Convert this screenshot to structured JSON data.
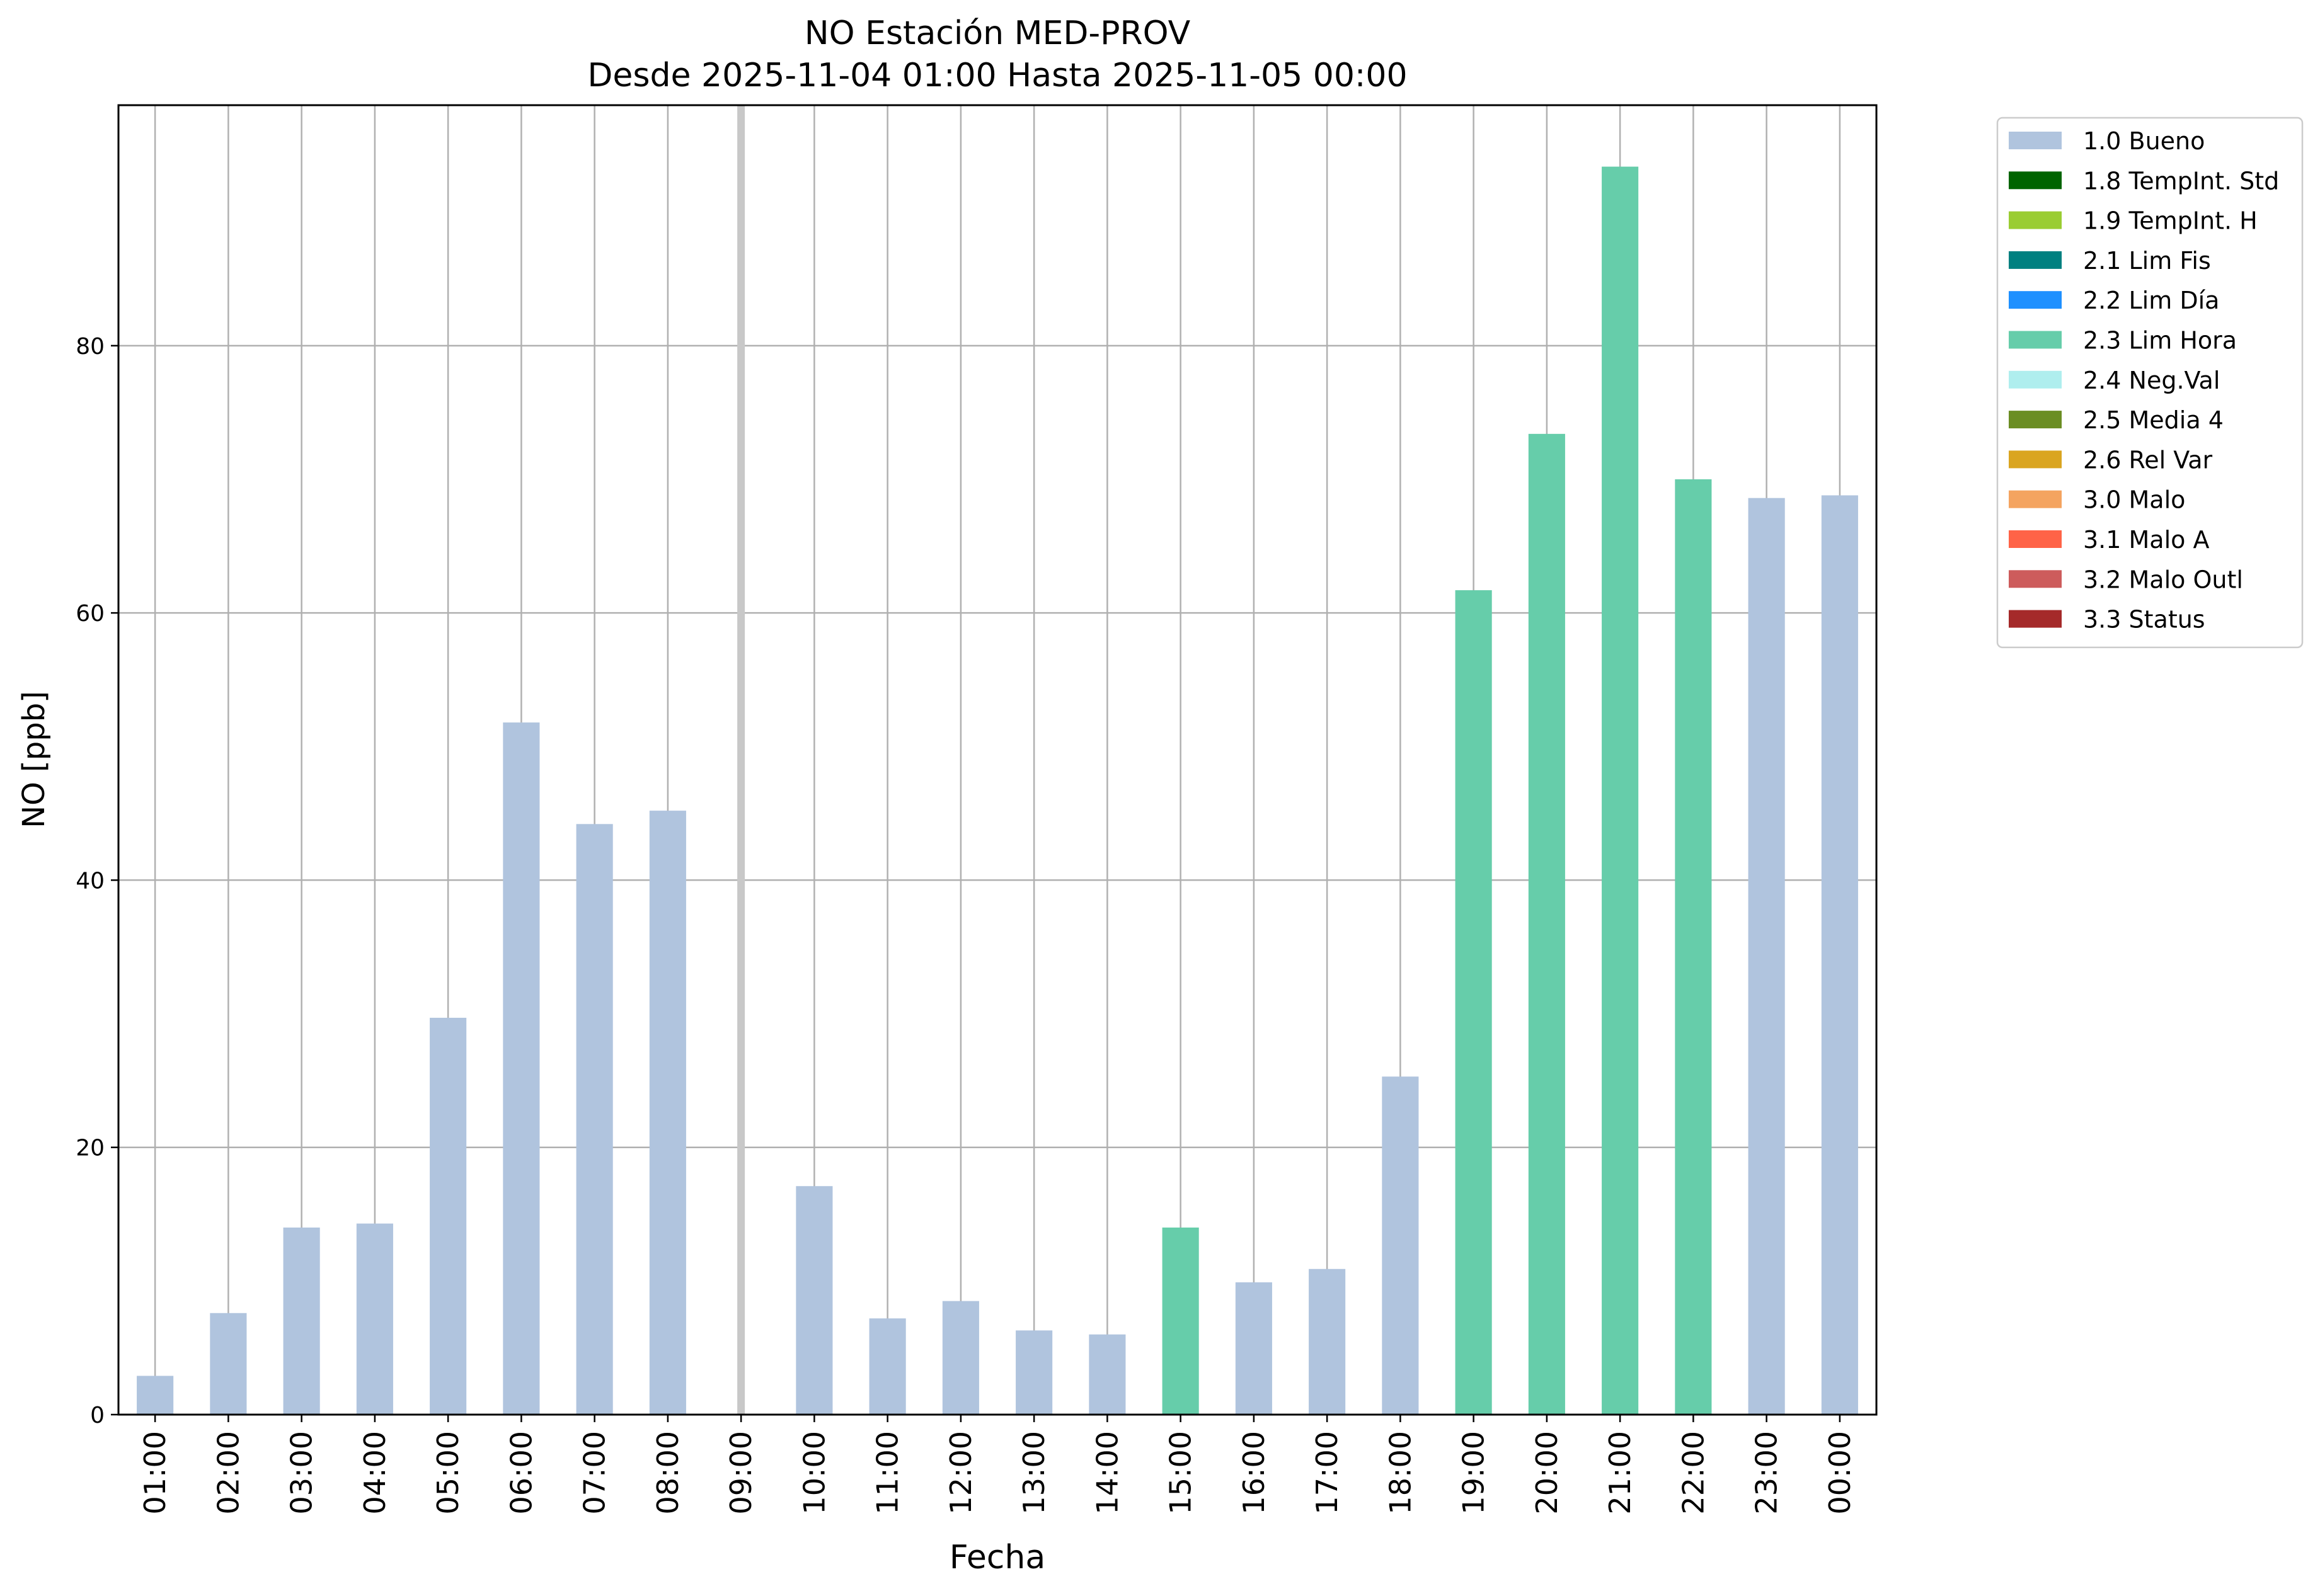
{
  "chart_data": {
    "type": "bar",
    "title": "NO Estación MED-PROV",
    "subtitle": "Desde 2025-11-04 01:00 Hasta 2025-11-05 00:00",
    "xlabel": "Fecha",
    "ylabel": "NO [ppb]",
    "ylim": [
      0,
      98
    ],
    "yticks": [
      "0",
      "20",
      "40",
      "60",
      "80"
    ],
    "grid": true,
    "legend_position": "outside-top-right",
    "categories": [
      "01:00",
      "02:00",
      "03:00",
      "04:00",
      "05:00",
      "06:00",
      "07:00",
      "08:00",
      "09:00",
      "10:00",
      "11:00",
      "12:00",
      "13:00",
      "14:00",
      "15:00",
      "16:00",
      "17:00",
      "18:00",
      "19:00",
      "20:00",
      "21:00",
      "22:00",
      "23:00",
      "00:00"
    ],
    "values": [
      2.9,
      7.6,
      14.0,
      14.3,
      29.7,
      51.8,
      44.2,
      45.2,
      null,
      17.1,
      7.2,
      8.5,
      6.3,
      6.0,
      14.0,
      9.9,
      10.9,
      25.3,
      61.7,
      73.4,
      93.4,
      70.0,
      68.6,
      68.8
    ],
    "flags": [
      "1.0",
      "1.0",
      "1.0",
      "1.0",
      "1.0",
      "1.0",
      "1.0",
      "1.0",
      null,
      "1.0",
      "1.0",
      "1.0",
      "1.0",
      "1.0",
      "2.3",
      "1.0",
      "1.0",
      "1.0",
      "2.3",
      "2.3",
      "2.3",
      "2.3",
      "1.0",
      "1.0"
    ],
    "missing_marker_color": "#c8c8c8",
    "legend": [
      {
        "code": "1.0",
        "label": "1.0 Bueno",
        "color": "#b0c4de"
      },
      {
        "code": "1.8",
        "label": "1.8 TempInt. Std",
        "color": "#006400"
      },
      {
        "code": "1.9",
        "label": "1.9 TempInt. H",
        "color": "#9acd32"
      },
      {
        "code": "2.1",
        "label": "2.1 Lim Fis",
        "color": "#008080"
      },
      {
        "code": "2.2",
        "label": "2.2 Lim Día",
        "color": "#1e90ff"
      },
      {
        "code": "2.3",
        "label": "2.3 Lim Hora",
        "color": "#66cdaa"
      },
      {
        "code": "2.4",
        "label": "2.4 Neg.Val",
        "color": "#afeeee"
      },
      {
        "code": "2.5",
        "label": "2.5 Media 4",
        "color": "#6b8e23"
      },
      {
        "code": "2.6",
        "label": "2.6 Rel Var",
        "color": "#daa520"
      },
      {
        "code": "3.0",
        "label": "3.0 Malo",
        "color": "#f4a460"
      },
      {
        "code": "3.1",
        "label": "3.1 Malo A",
        "color": "#ff6347"
      },
      {
        "code": "3.2",
        "label": "3.2 Malo Outl",
        "color": "#cd5c5c"
      },
      {
        "code": "3.3",
        "label": "3.3 Status",
        "color": "#a52a2a"
      }
    ]
  }
}
